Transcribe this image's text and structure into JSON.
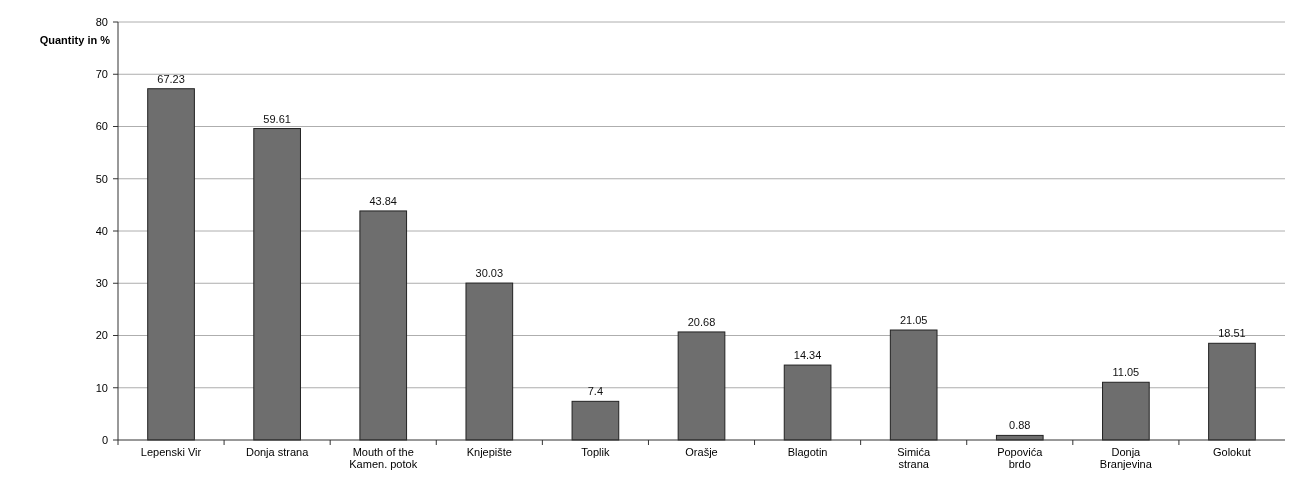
{
  "chart_data": {
    "type": "bar",
    "ylabel": "Quantity in %",
    "categories": [
      "Lepenski Vir",
      "Donja strana",
      "Mouth of the Kamen. potok",
      "Knjepište",
      "Toplik",
      "Orašje",
      "Blagotin",
      "Simića strana",
      "Popovića brdo",
      "Donja Branjevina",
      "Golokut"
    ],
    "values": [
      67.23,
      59.61,
      43.84,
      30.03,
      7.4,
      20.68,
      14.34,
      21.05,
      0.88,
      11.05,
      18.51
    ],
    "color": "#6e6e6e",
    "ylim": [
      0,
      80
    ],
    "yticks": [
      0,
      10,
      20,
      30,
      40,
      50,
      60,
      70,
      80
    ],
    "grid": "y",
    "data_labels": true
  }
}
